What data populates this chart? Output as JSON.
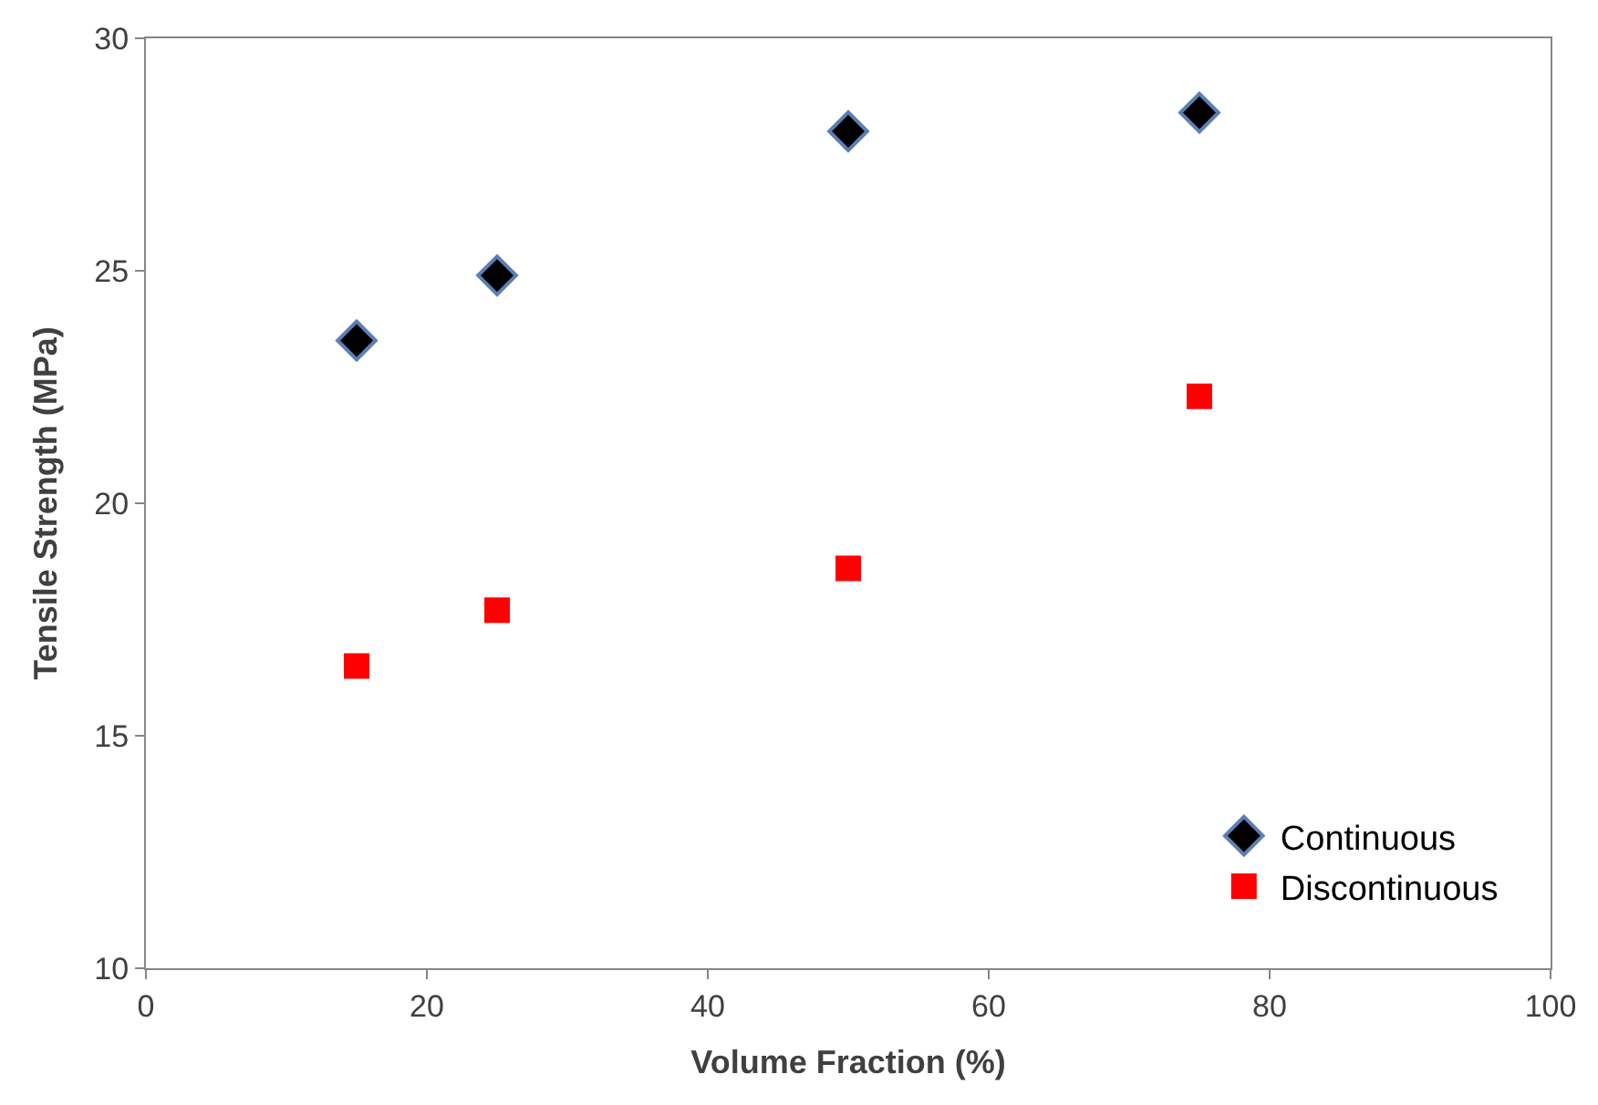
{
  "chart_data": {
    "type": "scatter",
    "xlabel": "Volume Fraction (%)",
    "ylabel": "Tensile Strength (MPa)",
    "x": [
      15,
      25,
      50,
      75
    ],
    "series": [
      {
        "name": "Continuous",
        "color": "#000000",
        "marker": "diamond",
        "values": [
          23.5,
          24.9,
          28.0,
          28.4
        ]
      },
      {
        "name": "Discontinuous",
        "color": "#ff0000",
        "marker": "square",
        "values": [
          16.5,
          17.7,
          18.6,
          22.3
        ]
      }
    ],
    "xlim": [
      0,
      100
    ],
    "xticks": [
      0,
      20,
      40,
      60,
      80,
      100
    ],
    "ylim": [
      10,
      30
    ],
    "yticks": [
      10,
      15,
      20,
      25,
      30
    ],
    "legend": "bottom right"
  }
}
